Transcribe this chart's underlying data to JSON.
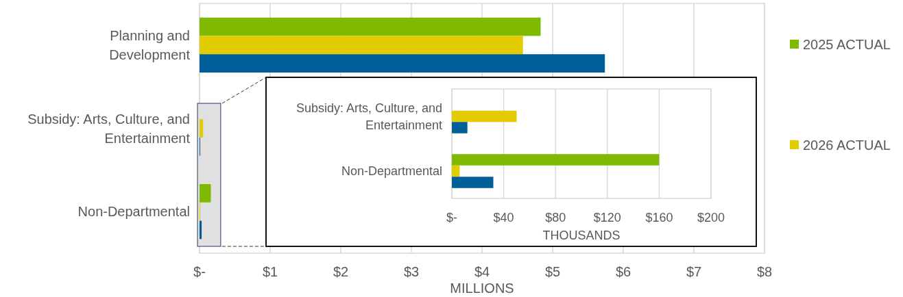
{
  "chart_data": [
    {
      "type": "bar",
      "orientation": "horizontal",
      "categories": [
        "Planning and Development",
        "Subsidy: Arts, Culture, and Entertainment",
        "Non-Departmental"
      ],
      "series": [
        {
          "name": "2025 ACTUAL",
          "color": "#7fba00",
          "values": [
            4.83,
            null,
            0.16
          ]
        },
        {
          "name": "2026 ACTUAL",
          "color": "#e2cc00",
          "values": [
            4.58,
            0.05,
            0.01
          ]
        },
        {
          "color": "#005f99",
          "values": [
            5.74,
            0.01,
            0.03
          ]
        }
      ],
      "xlim": [
        0,
        8
      ],
      "xticks": [
        {
          "value": 0,
          "label": "$-"
        },
        {
          "value": 1,
          "label": "$1"
        },
        {
          "value": 2,
          "label": "$2"
        },
        {
          "value": 3,
          "label": "$3"
        },
        {
          "value": 4,
          "label": "$4"
        },
        {
          "value": 5,
          "label": "$5"
        },
        {
          "value": 6,
          "label": "$6"
        },
        {
          "value": 7,
          "label": "$7"
        },
        {
          "value": 8,
          "label": "$8"
        }
      ],
      "xlabel": "MILLIONS",
      "grid": "x",
      "legend": "right",
      "bands": [
        {
          "axis": "x",
          "from": 0,
          "to": 0.3,
          "color": "#e0e0e0"
        }
      ]
    },
    {
      "type": "bar",
      "orientation": "horizontal",
      "categories": [
        "Subsidy: Arts, Culture, and Entertainment",
        "Non-Departmental"
      ],
      "series": [
        {
          "color": "#7fba00",
          "values": [
            null,
            160
          ]
        },
        {
          "color": "#e2cc00",
          "values": [
            50,
            6
          ]
        },
        {
          "color": "#005f99",
          "values": [
            12,
            32
          ]
        }
      ],
      "xlim": [
        0,
        200
      ],
      "xticks": [
        {
          "value": 0,
          "label": "$-"
        },
        {
          "value": 40,
          "label": "$40"
        },
        {
          "value": 80,
          "label": "$80"
        },
        {
          "value": 120,
          "label": "$120"
        },
        {
          "value": 160,
          "label": "$160"
        },
        {
          "value": 200,
          "label": "$200"
        }
      ],
      "xlabel": "THOUSANDS",
      "grid": "x"
    }
  ]
}
